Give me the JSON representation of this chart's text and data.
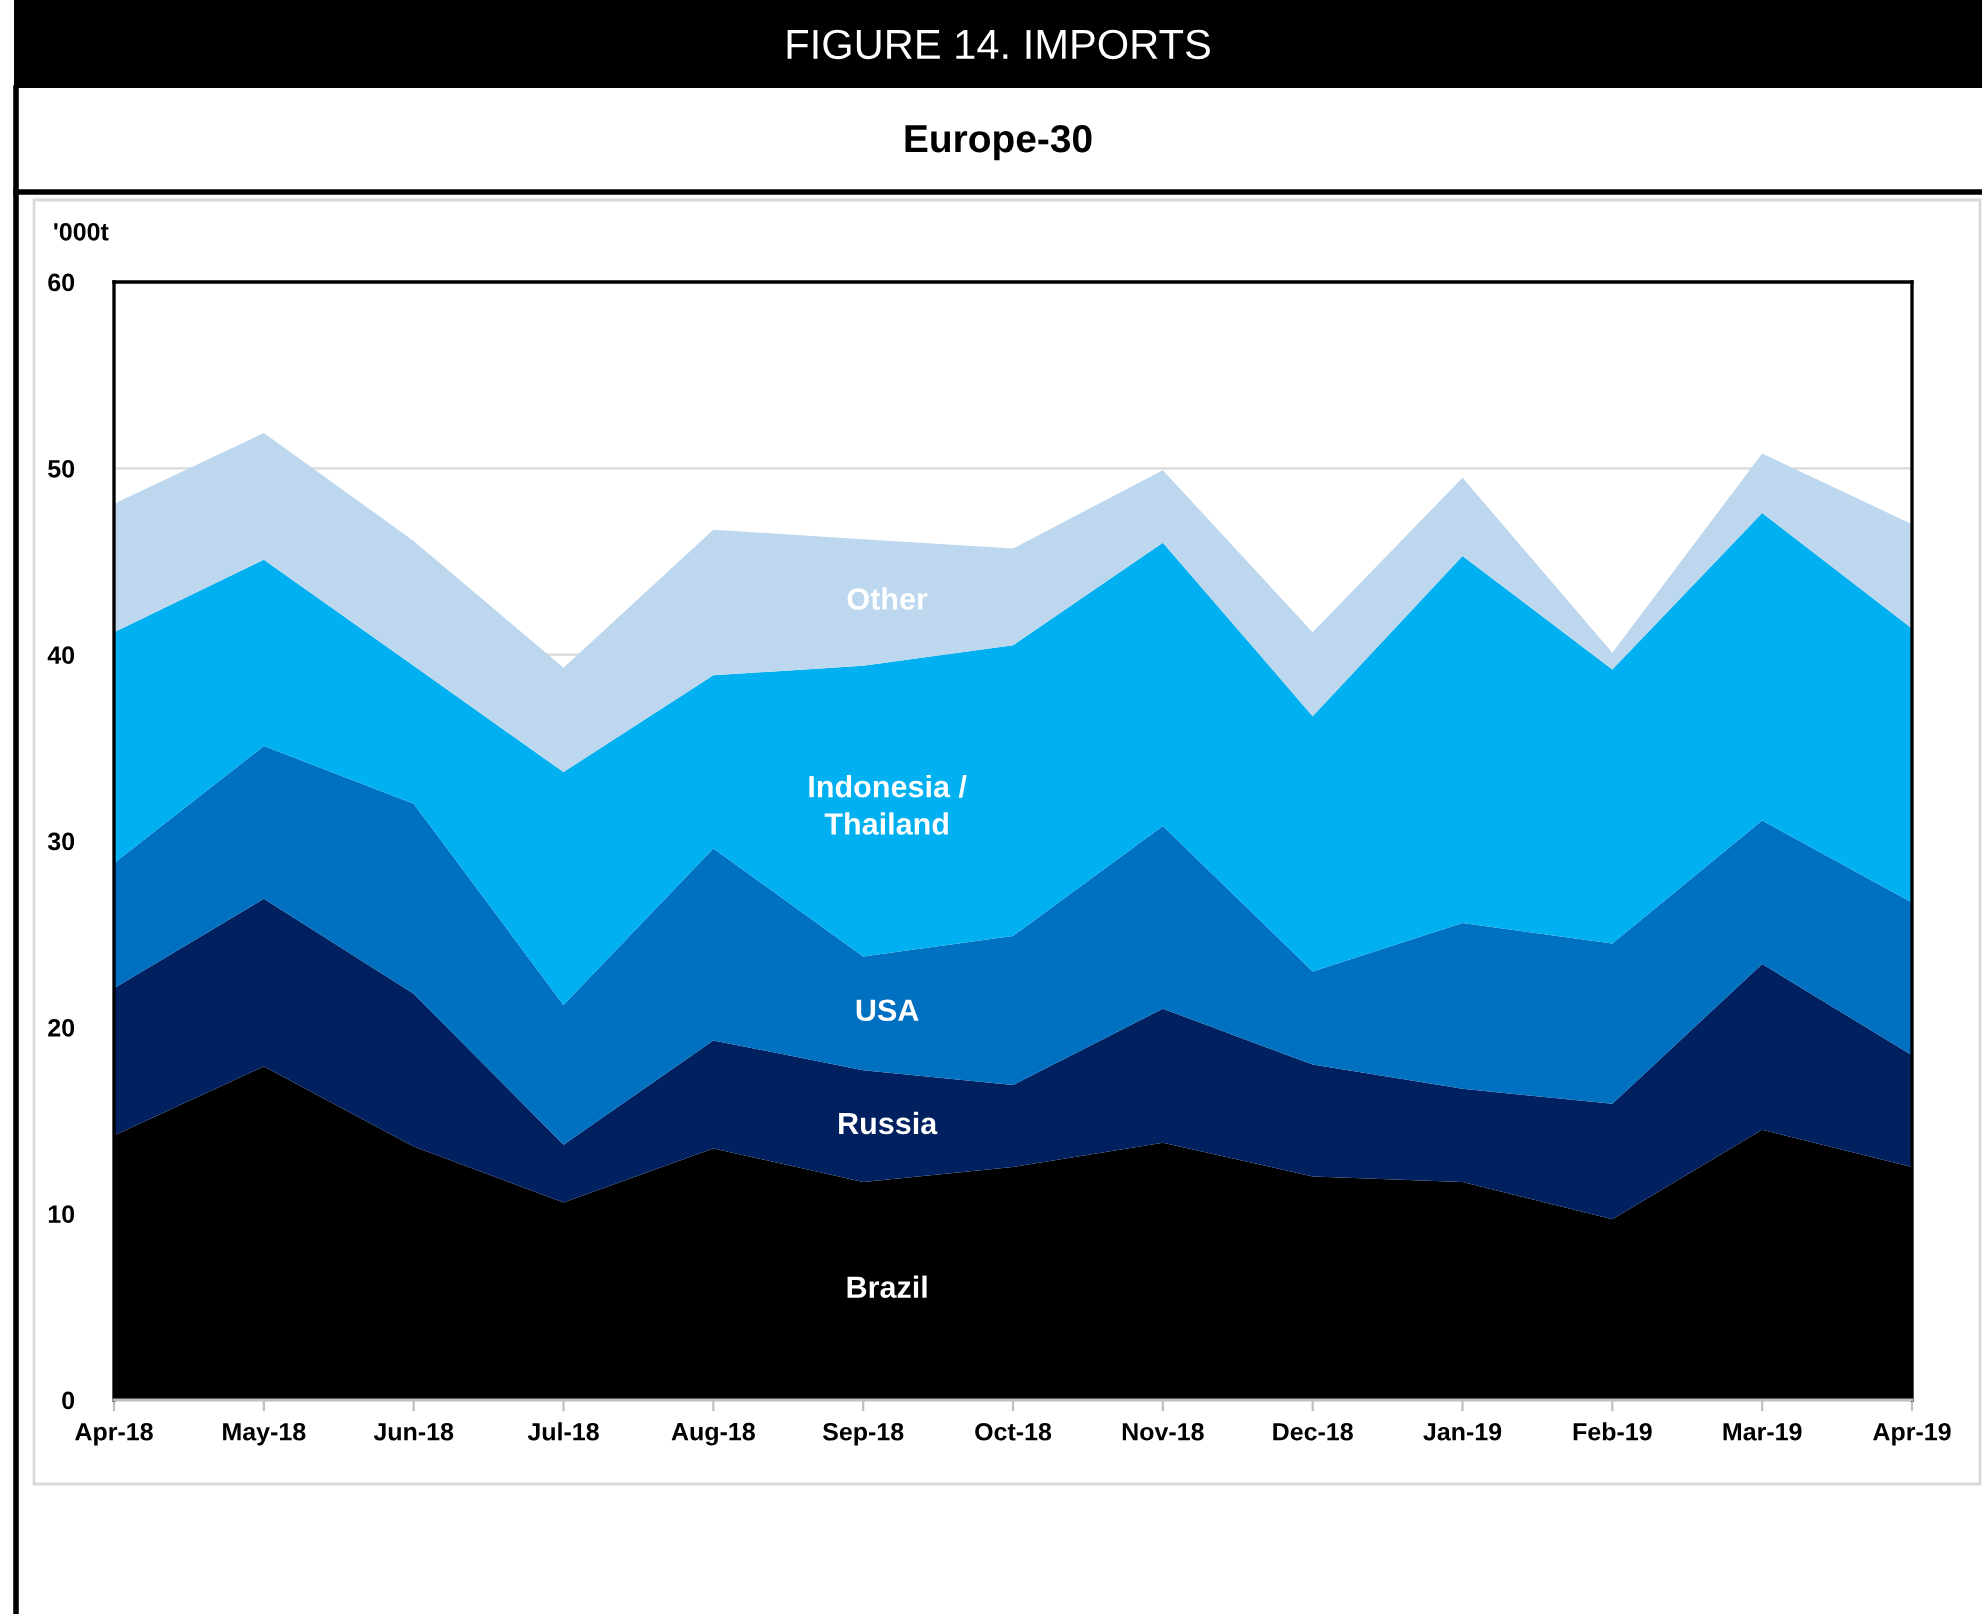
{
  "chart_data": {
    "type": "area",
    "stacked": true,
    "title": "FIGURE 14. IMPORTS",
    "subtitle": "Europe-30",
    "ylabel": "'000t",
    "categories": [
      "Apr-18",
      "May-18",
      "Jun-18",
      "Jul-18",
      "Aug-18",
      "Sep-18",
      "Oct-18",
      "Nov-18",
      "Dec-18",
      "Jan-19",
      "Feb-19",
      "Mar-19",
      "Apr-19"
    ],
    "ylim": [
      0,
      60
    ],
    "yticks": [
      0,
      10,
      20,
      30,
      40,
      50,
      60
    ],
    "grid": "y",
    "series": [
      {
        "name": "Brazil",
        "color": "#000000",
        "values": [
          14.2,
          17.9,
          13.6,
          10.6,
          13.5,
          11.7,
          12.5,
          13.8,
          12.0,
          11.7,
          9.7,
          14.5,
          12.5
        ]
      },
      {
        "name": "Russia",
        "color": "#002060",
        "values": [
          7.9,
          9.0,
          8.2,
          3.1,
          5.8,
          6.0,
          4.4,
          7.2,
          6.0,
          5.0,
          6.2,
          8.9,
          6.0
        ]
      },
      {
        "name": "USA",
        "color": "#0070c0",
        "values": [
          6.7,
          8.2,
          10.2,
          7.5,
          10.3,
          6.1,
          8.0,
          9.8,
          5.0,
          8.9,
          8.6,
          7.7,
          8.2
        ]
      },
      {
        "name": "Indonesia /\nThailand",
        "color": "#00b0f0",
        "values": [
          12.4,
          10.0,
          7.4,
          12.5,
          9.3,
          15.6,
          15.6,
          15.2,
          13.7,
          19.7,
          14.7,
          16.5,
          14.7
        ]
      },
      {
        "name": "Other",
        "color": "#bdd7ee",
        "values": [
          6.9,
          6.8,
          6.7,
          5.6,
          7.8,
          6.8,
          5.2,
          3.9,
          4.5,
          4.2,
          0.9,
          3.2,
          5.6
        ]
      }
    ]
  }
}
